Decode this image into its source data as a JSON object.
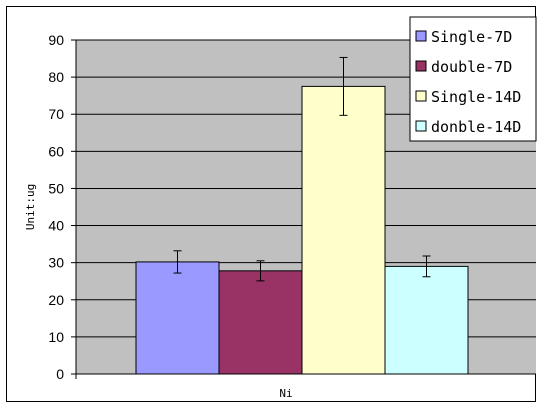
{
  "chart_data": {
    "type": "bar",
    "categories": [
      "Ni"
    ],
    "series": [
      {
        "name": "Single-7D",
        "values": [
          30.2
        ],
        "error": [
          3.0
        ],
        "color": "#9999ff"
      },
      {
        "name": "double-7D",
        "values": [
          27.8
        ],
        "error": [
          2.7
        ],
        "color": "#993366"
      },
      {
        "name": "Single-14D",
        "values": [
          77.5
        ],
        "error": [
          7.8
        ],
        "color": "#ffffcc"
      },
      {
        "name": "donble-14D",
        "values": [
          29.0
        ],
        "error": [
          2.8
        ],
        "color": "#ccffff"
      }
    ],
    "title": "",
    "xlabel": "",
    "ylabel": "Unit:ug",
    "ylim": [
      0,
      90
    ],
    "yticks": [
      "0",
      "10",
      "20",
      "30",
      "40",
      "50",
      "60",
      "70",
      "80",
      "90"
    ],
    "grid": true,
    "plot_background": "#c0c0c0",
    "legend_position": "top-right"
  }
}
